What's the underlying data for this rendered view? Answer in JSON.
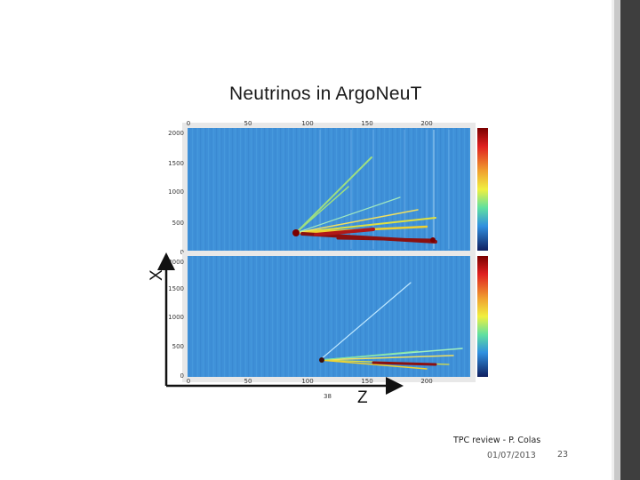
{
  "slide": {
    "title": "Neutrinos in ArgoNeuT",
    "footer": {
      "text": "TPC review - P. Colas",
      "date": "01/07/2013",
      "slide_number": "23"
    }
  },
  "figure": {
    "x_axis_ticks": [
      "0",
      "50",
      "100",
      "150",
      "200"
    ],
    "y_axis_ticks": [
      "0",
      "500",
      "1000",
      "1500",
      "2000"
    ],
    "axis_label_x": "Z",
    "axis_label_y": "X",
    "small_label": "38",
    "colors": {
      "panel_background": "#3d8fd8",
      "track_hot": "#8b1010",
      "track_mid": "#f0e040",
      "track_cool": "#7fe0a0",
      "arrow": "#111111"
    }
  }
}
